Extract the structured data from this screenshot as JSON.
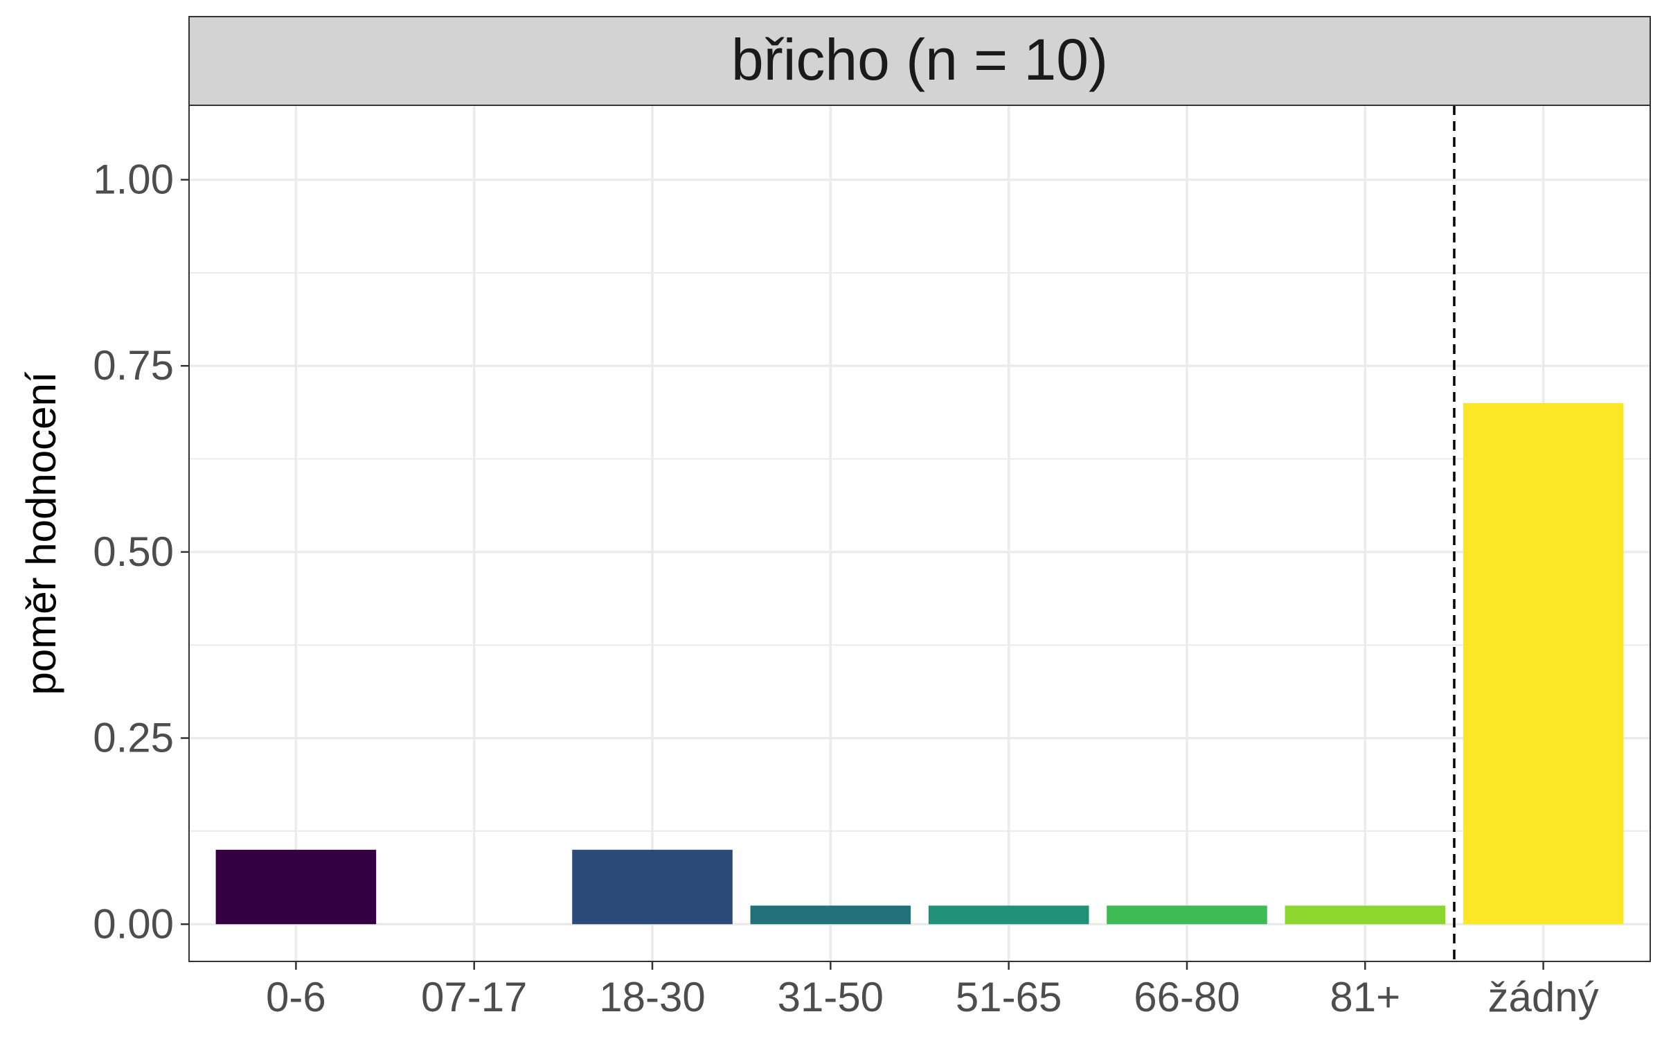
{
  "chart_data": {
    "type": "bar",
    "title": "břicho (n = 10)",
    "ylabel": "poměr hodnocení",
    "xlabel": "",
    "categories": [
      "0-6",
      "07-17",
      "18-30",
      "31-50",
      "51-65",
      "66-80",
      "81+",
      "žádný"
    ],
    "values": [
      0.1,
      0.0,
      0.1,
      0.025,
      0.025,
      0.025,
      0.025,
      0.7
    ],
    "colors": [
      "#340042",
      "#46327e",
      "#2b4a78",
      "#21707a",
      "#21927a",
      "#3cbb57",
      "#8dd62f",
      "#fde625"
    ],
    "ylim": [
      -0.05,
      1.1
    ],
    "yticks": [
      0.0,
      0.25,
      0.5,
      0.75,
      1.0
    ],
    "ytick_labels": [
      "0.00",
      "0.25",
      "0.50",
      "0.75",
      "1.00"
    ],
    "reference_line": {
      "between_categories": [
        "81+",
        "žádný"
      ],
      "style": "dashed"
    },
    "grid": true,
    "legend": "none"
  }
}
